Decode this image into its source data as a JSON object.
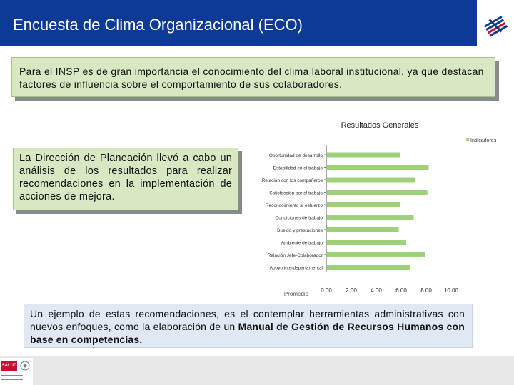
{
  "header": {
    "title": "Encuesta de Clima Organizacional (ECO)",
    "logo_icon": "insp-logo-icon"
  },
  "intro": {
    "text": "Para el INSP es de gran importancia el conocimiento del clima laboral institucional, ya que destacan factores de influencia sobre el comportamiento de sus colaboradores."
  },
  "planning": {
    "text": "La Dirección de Planeación llevó a cabo un análisis de los resultados para realizar recomendaciones en la implementación de acciones de mejora."
  },
  "example": {
    "lead": "Un ejemplo de estas recomendaciones, es el contemplar herramientas administrativas con nuevos enfoques, como la elaboración de un ",
    "bold": "Manual de Gestión de Recursos Humanos con base en competencias."
  },
  "footer": {
    "salud_label": "SALUD",
    "emblem_icon": "mexico-emblem-icon"
  },
  "colors": {
    "title_bar": "#0c3a94",
    "card_green": "#d7e8c3",
    "card_blue": "#dfe8f3",
    "bar": "#9fd07a"
  },
  "chart_data": {
    "type": "bar",
    "orientation": "horizontal",
    "title": "Resultados Generales",
    "xlabel": "Promedio",
    "legend": "top-right",
    "series": [
      {
        "name": "Indicadores",
        "values": [
          5.9,
          8.2,
          7.1,
          8.1,
          5.9,
          7.0,
          5.8,
          6.4,
          7.9,
          6.7
        ]
      }
    ],
    "categories": [
      "Oportunidad de desarrollo",
      "Estabilidad en el trabajo",
      "Relación con los compañeros",
      "Satisfacción por el trabajo",
      "Reconocimiento al esfuerzo",
      "Condiciones de trabajo",
      "Sueldo y prestaciones",
      "Ambiente de trabajo",
      "Relación Jefe-Colaborador",
      "Apoyo interdepartamental"
    ],
    "xticks": [
      "0.00",
      "2.00",
      "4.00",
      "6.00",
      "8.00",
      "10.00"
    ],
    "xlim": [
      0,
      10
    ]
  }
}
